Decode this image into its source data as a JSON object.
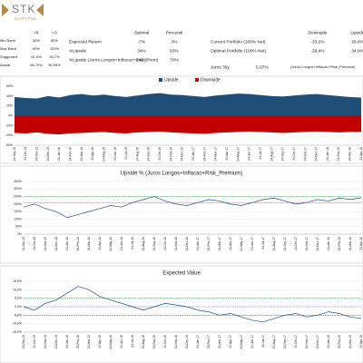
{
  "header": {
    "logo": "STK",
    "logo_sub": "CAPITAL"
  },
  "bands_table": {
    "columns": [
      "LB",
      "LO"
    ],
    "rows": [
      {
        "label": "Min Band",
        "values": [
          "50%",
          "80%"
        ]
      },
      {
        "label": "Max Band",
        "values": [
          "90%",
          "100%"
        ]
      },
      {
        "label": "Suggested",
        "values": [
          "61,0%",
          "93,7%"
        ]
      },
      {
        "label": "Actual",
        "values": [
          "68,70%",
          "96,95%"
        ]
      }
    ]
  },
  "optimal_table": {
    "columns": [
      "Optimal",
      "Percentil"
    ],
    "rows": [
      {
        "label": "Expected Return",
        "values": [
          "-7%",
          "3%"
        ]
      },
      {
        "label": "%Upside",
        "values": [
          "34%",
          "63%"
        ]
      },
      {
        "label": "%Upside (Juros Longos+Inflacao+Risk_Prem)",
        "values": [
          "242%",
          "70%"
        ]
      }
    ]
  },
  "portfolio_table": {
    "columns": [
      "Downside",
      "Upside"
    ],
    "rows": [
      {
        "label": "Current Portfolio (100% Net)",
        "values": [
          "-33,2%",
          "29,0%"
        ]
      },
      {
        "label": "Optimal Portfolio (100% Net)",
        "values": [
          "-29,4%",
          "34,0%"
        ]
      }
    ]
  },
  "juros": {
    "label": "Juros 35y",
    "value": "5,07%",
    "note": "(Juros Longos+Inflacao+Risk_Premium)"
  },
  "chart_data": [
    {
      "type": "area",
      "x": [
        "24-Sep-15",
        "24-Oct-15",
        "24-Nov-15",
        "24-Dec-15",
        "24-Jan-16",
        "24-Feb-16",
        "24-Mar-16",
        "24-Apr-16",
        "24-May-16",
        "24-Jun-16",
        "24-Jul-16",
        "24-Aug-16",
        "24-Sep-16",
        "24-Oct-16",
        "24-Nov-16",
        "24-Dec-16",
        "24-Jan-17",
        "24-Feb-17",
        "24-Mar-17",
        "24-Apr-17",
        "24-May-17",
        "24-Jun-17",
        "24-Jul-17",
        "24-Aug-17",
        "24-Sep-17",
        "24-Oct-17",
        "24-Nov-17",
        "24-Dec-17",
        "24-Jan-18",
        "24-Feb-18",
        "24-Mar-18",
        "24-Apr-18"
      ],
      "series": [
        {
          "name": "Upside",
          "color": "#1f4e79",
          "values": [
            38,
            36,
            35,
            40,
            37,
            42,
            44,
            41,
            43,
            40,
            38,
            41,
            44,
            46,
            43,
            42,
            40,
            38,
            41,
            43,
            45,
            44,
            42,
            40,
            39,
            41,
            43,
            44,
            42,
            40,
            38,
            37
          ]
        },
        {
          "name": "Downside",
          "color": "#c00000",
          "values": [
            -35,
            -36,
            -34,
            -37,
            -38,
            -36,
            -35,
            -34,
            -33,
            -35,
            -36,
            -34,
            -33,
            -32,
            -34,
            -35,
            -36,
            -37,
            -35,
            -34,
            -33,
            -32,
            -33,
            -34,
            -35,
            -34,
            -33,
            -32,
            -33,
            -34,
            -33,
            -33
          ]
        }
      ],
      "ylim": [
        -60,
        60
      ],
      "yticks": [
        {
          "value": -60,
          "label": "-60%"
        },
        {
          "value": -40,
          "label": "-40%"
        },
        {
          "value": -20,
          "label": "-20%"
        },
        {
          "value": 0,
          "label": "0%"
        },
        {
          "value": 20,
          "label": "20%"
        },
        {
          "value": 40,
          "label": "40%"
        },
        {
          "value": 60,
          "label": "60%"
        }
      ],
      "legend": "top"
    },
    {
      "type": "line",
      "title": "Upside % (Juros Longos+Inflacao+Risk_Premium)",
      "x": [
        "24-Sep-15",
        "24-Oct-15",
        "24-Nov-15",
        "24-Dec-15",
        "24-Jan-16",
        "24-Feb-16",
        "24-Mar-16",
        "24-Apr-16",
        "24-May-16",
        "24-Jun-16",
        "24-Jul-16",
        "24-Aug-16",
        "24-Sep-16",
        "24-Oct-16",
        "24-Nov-16",
        "24-Dec-16",
        "24-Jan-17",
        "24-Feb-17",
        "24-Mar-17",
        "24-Apr-17",
        "24-May-17",
        "24-Jun-17",
        "24-Jul-17",
        "24-Aug-17",
        "24-Sep-17",
        "24-Oct-17",
        "24-Nov-17",
        "24-Dec-17",
        "24-Jan-18",
        "24-Feb-18",
        "24-Mar-18",
        "24-Apr-18"
      ],
      "series": [
        {
          "color": "#1f4e79",
          "values": [
            180,
            200,
            170,
            150,
            110,
            130,
            150,
            170,
            190,
            180,
            210,
            230,
            250,
            220,
            200,
            190,
            210,
            230,
            220,
            200,
            190,
            210,
            230,
            240,
            220,
            200,
            210,
            230,
            220,
            240,
            230,
            242
          ]
        }
      ],
      "reference_lines": [
        {
          "value": 250,
          "color": "#2e9e44"
        },
        {
          "value": 210,
          "color": "#e03030"
        }
      ],
      "ylim": [
        0,
        350
      ],
      "yticks": [
        {
          "value": 0,
          "label": "0%"
        },
        {
          "value": 50,
          "label": "50%"
        },
        {
          "value": 100,
          "label": "100%"
        },
        {
          "value": 150,
          "label": "150%"
        },
        {
          "value": 200,
          "label": "200%"
        },
        {
          "value": 250,
          "label": "250%"
        },
        {
          "value": 300,
          "label": "300%"
        },
        {
          "value": 350,
          "label": "350%"
        }
      ],
      "grid": true
    },
    {
      "type": "line",
      "title": "Expected Value",
      "x": [
        "24-Sep-15",
        "24-Oct-15",
        "24-Nov-15",
        "24-Dec-15",
        "24-Jan-16",
        "24-Feb-16",
        "24-Mar-16",
        "24-Apr-16",
        "24-May-16",
        "24-Jun-16",
        "24-Jul-16",
        "24-Aug-16",
        "24-Sep-16",
        "24-Oct-16",
        "24-Nov-16",
        "24-Dec-16",
        "24-Jan-17",
        "24-Feb-17",
        "24-Mar-17",
        "24-Apr-17",
        "24-May-17",
        "24-Jun-17",
        "24-Jul-17",
        "24-Aug-17",
        "24-Sep-17",
        "24-Oct-17",
        "24-Nov-17",
        "24-Dec-17",
        "24-Jan-18",
        "24-Feb-18",
        "24-Mar-18",
        "24-Apr-18"
      ],
      "series": [
        {
          "color": "#1f4e79",
          "values": [
            0,
            -2,
            2,
            4,
            8,
            12,
            10,
            6,
            4,
            2,
            0,
            -2,
            0,
            2,
            1,
            0,
            -2,
            -3,
            -5,
            -4,
            -6,
            -8,
            -9,
            -7,
            -5,
            -4,
            -6,
            -5,
            -3,
            -4,
            -6,
            -7
          ]
        }
      ],
      "reference_lines": [
        {
          "value": 5,
          "color": "#2e9e44"
        },
        {
          "value": 0,
          "color": "#4a6fd0"
        },
        {
          "value": -5,
          "color": "#e03030"
        }
      ],
      "ylim": [
        -15,
        15
      ],
      "yticks": [
        {
          "value": -15,
          "label": "-15,0%"
        },
        {
          "value": -10,
          "label": "-10,0%"
        },
        {
          "value": -5,
          "label": "-5,0%"
        },
        {
          "value": 0,
          "label": "0,0%"
        },
        {
          "value": 5,
          "label": "5,0%"
        },
        {
          "value": 10,
          "label": "10,0%"
        },
        {
          "value": 15,
          "label": "15,0%"
        }
      ],
      "grid": true
    }
  ]
}
